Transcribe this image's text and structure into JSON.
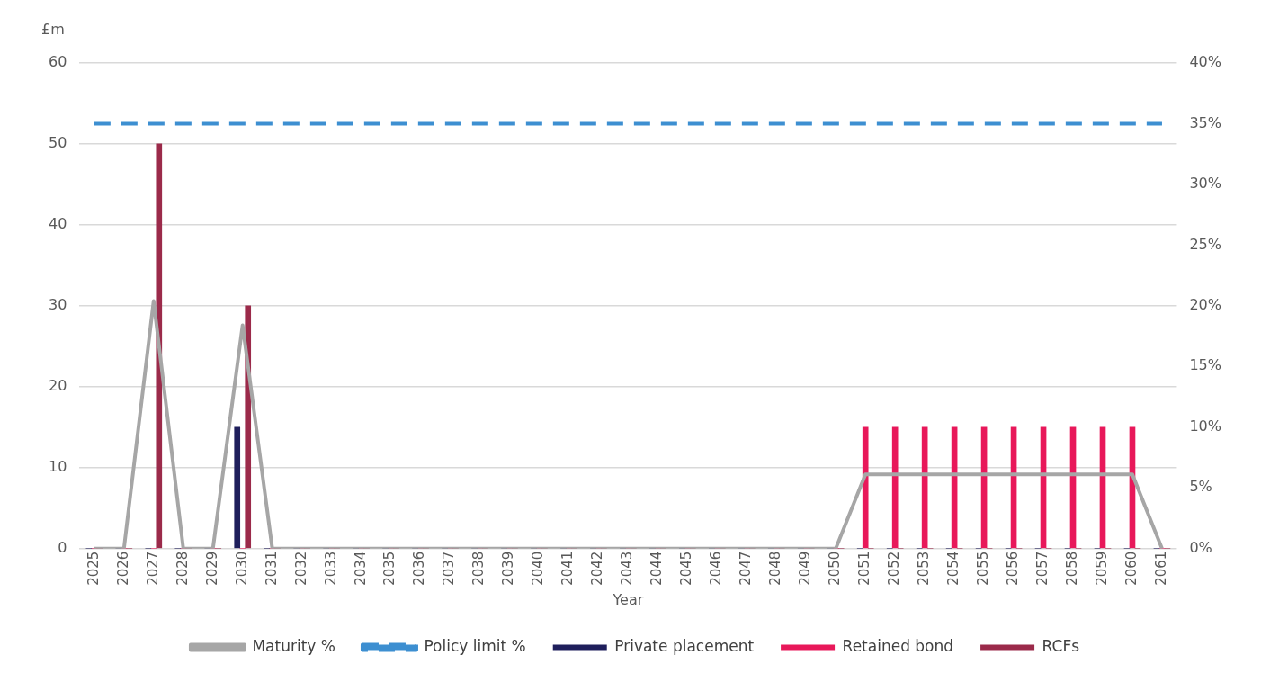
{
  "chart_data": {
    "type": "bar",
    "xlabel": "Year",
    "ylabel": "£m",
    "categories": [
      "2025",
      "2026",
      "2027",
      "2028",
      "2029",
      "2030",
      "2031",
      "2032",
      "2033",
      "2034",
      "2035",
      "2036",
      "2037",
      "2038",
      "2039",
      "2040",
      "2041",
      "2042",
      "2043",
      "2044",
      "2045",
      "2046",
      "2047",
      "2048",
      "2049",
      "2050",
      "2051",
      "2052",
      "2053",
      "2054",
      "2055",
      "2056",
      "2057",
      "2058",
      "2059",
      "2060",
      "2061"
    ],
    "series": [
      {
        "name": "Private placement",
        "color": "#1f1f5c",
        "values": [
          0,
          0,
          0,
          0,
          0,
          15,
          0,
          0,
          0,
          0,
          0,
          0,
          0,
          0,
          0,
          0,
          0,
          0,
          0,
          0,
          0,
          0,
          0,
          0,
          0,
          0,
          0,
          0,
          0,
          0,
          0,
          0,
          0,
          0,
          0,
          0,
          0
        ]
      },
      {
        "name": "Retained bond",
        "color": "#e8185a",
        "values": [
          0,
          0,
          0,
          0,
          0,
          0,
          0,
          0,
          0,
          0,
          0,
          0,
          0,
          0,
          0,
          0,
          0,
          0,
          0,
          0,
          0,
          0,
          0,
          0,
          0,
          0,
          15,
          15,
          15,
          15,
          15,
          15,
          15,
          15,
          15,
          15,
          0
        ]
      },
      {
        "name": "RCFs",
        "color": "#9b2a4a",
        "values": [
          0,
          0,
          50,
          0,
          0,
          30,
          0,
          0,
          0,
          0,
          0,
          0,
          0,
          0,
          0,
          0,
          0,
          0,
          0,
          0,
          0,
          0,
          0,
          0,
          0,
          0,
          0,
          0,
          0,
          0,
          0,
          0,
          0,
          0,
          0,
          0,
          0
        ]
      },
      {
        "name": "Maturity %",
        "type": "line",
        "axis": "y2",
        "color": "#a6a6a6",
        "values": [
          0,
          0,
          20.4,
          0,
          0,
          18.4,
          0,
          0,
          0,
          0,
          0,
          0,
          0,
          0,
          0,
          0,
          0,
          0,
          0,
          0,
          0,
          0,
          0,
          0,
          0,
          0,
          6.1,
          6.1,
          6.1,
          6.1,
          6.1,
          6.1,
          6.1,
          6.1,
          6.1,
          6.1,
          0
        ]
      },
      {
        "name": "Policy limit %",
        "type": "line",
        "axis": "y2",
        "line_style": "dashed",
        "color": "#3d8fd1",
        "values": [
          35,
          35,
          35,
          35,
          35,
          35,
          35,
          35,
          35,
          35,
          35,
          35,
          35,
          35,
          35,
          35,
          35,
          35,
          35,
          35,
          35,
          35,
          35,
          35,
          35,
          35,
          35,
          35,
          35,
          35,
          35,
          35,
          35,
          35,
          35,
          35,
          35
        ]
      }
    ],
    "ylim": [
      0,
      60
    ],
    "yticks": [
      0,
      10,
      20,
      30,
      40,
      50,
      60
    ],
    "y2lim": [
      0,
      40
    ],
    "y2ticks": [
      {
        "value": 0,
        "label": "0%"
      },
      {
        "value": 5,
        "label": "5%"
      },
      {
        "value": 10,
        "label": "10%"
      },
      {
        "value": 15,
        "label": "15%"
      },
      {
        "value": 20,
        "label": "20%"
      },
      {
        "value": 25,
        "label": "25%"
      },
      {
        "value": 30,
        "label": "30%"
      },
      {
        "value": 35,
        "label": "35%"
      },
      {
        "value": 40,
        "label": "40%"
      }
    ],
    "grid": "y",
    "legend": "bottom",
    "marker": "none"
  }
}
